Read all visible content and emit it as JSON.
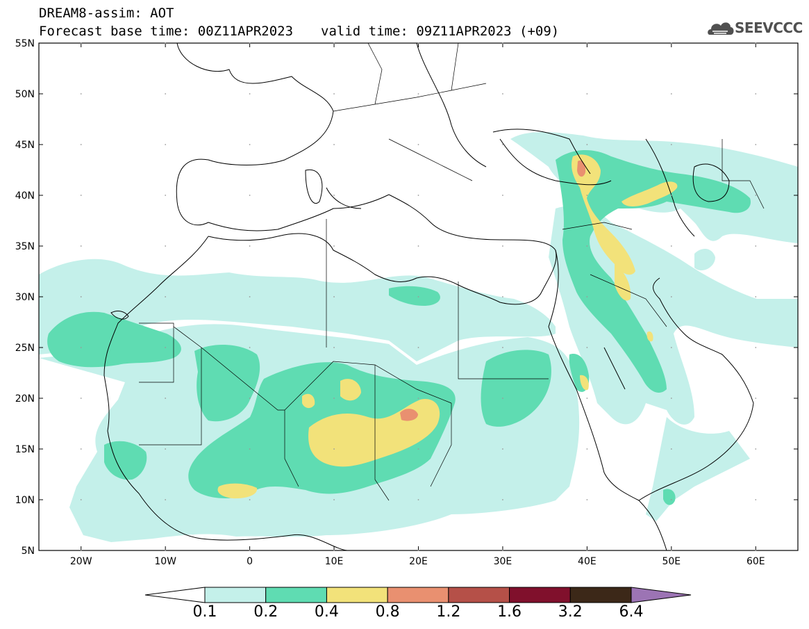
{
  "header": {
    "title": "DREAM8-assim: AOT",
    "base_time": "Forecast base time: 00Z11APR2023",
    "valid_time": "valid time: 09Z11APR2023 (+09)"
  },
  "logo": {
    "text": "SEEVCCC",
    "icon": "cloud-icon"
  },
  "map": {
    "lon_range": [
      -25,
      65
    ],
    "lat_range": [
      5,
      55
    ],
    "lat_ticks": [
      "55N",
      "50N",
      "45N",
      "40N",
      "35N",
      "30N",
      "25N",
      "20N",
      "15N",
      "10N",
      "5N"
    ],
    "lon_ticks": [
      "20W",
      "10W",
      "0",
      "10E",
      "20E",
      "30E",
      "40E",
      "50E",
      "60E"
    ]
  },
  "colorbar": {
    "levels": [
      "0.1",
      "0.2",
      "0.4",
      "0.8",
      "1.2",
      "1.6",
      "3.2",
      "6.4"
    ],
    "colors": [
      "#c4f0ea",
      "#5fdcb2",
      "#f2e27a",
      "#e99070",
      "#b55048",
      "#80102c",
      "#3c2818",
      "#9c74b4"
    ]
  }
}
